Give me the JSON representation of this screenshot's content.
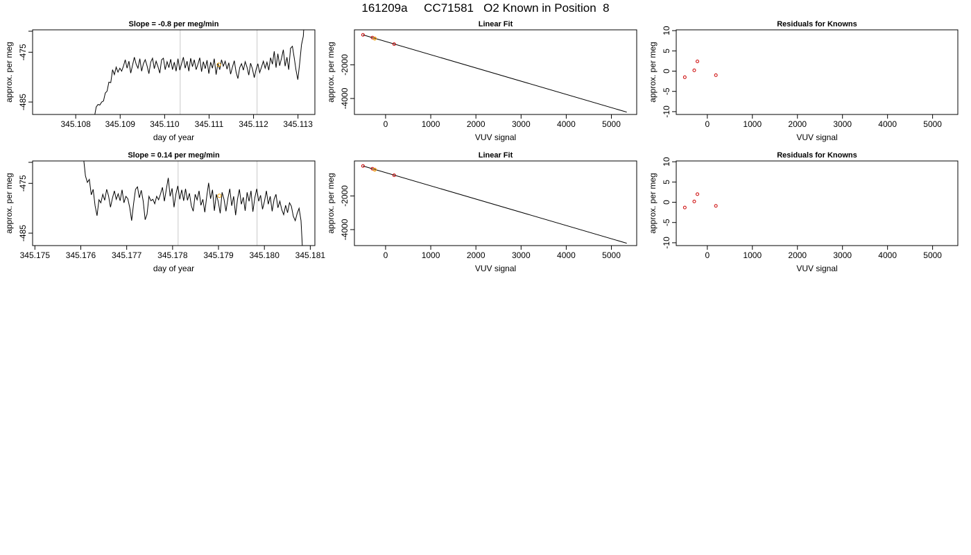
{
  "title": "161209a     CC71581   O2 Known in Position  8",
  "colors": {
    "axis": "#000000",
    "line": "#000000",
    "vline": "#c8c8c8",
    "point": "#cc0000",
    "highlight": "#f0a000"
  },
  "chart_data": [
    {
      "type": "line",
      "title": "Slope =  -0.8  per meg/min",
      "xlabel": "day of year",
      "ylabel": "approx. per meg",
      "xlim": [
        345.10703,
        345.11338
      ],
      "ylim": [
        -487.5,
        -470.5
      ],
      "xticks": [
        345.108,
        345.109,
        345.11,
        345.111,
        345.112,
        345.113
      ],
      "xtick_labels": [
        "345.108",
        "345.109",
        "345.110",
        "345.111",
        "345.112",
        "345.113"
      ],
      "yticks": [
        -485,
        -475
      ],
      "ytick_labels": [
        "-485",
        "-475"
      ],
      "vlines": [
        345.11035,
        345.11208
      ],
      "highlight_point": [
        345.11122,
        -477.5
      ],
      "series": [
        {
          "x_start": 345.10842,
          "x_end": 345.11316,
          "x_offclip": 345.1129,
          "values": [
            -488,
            -486,
            -485.5,
            -485.6,
            -485,
            -484.8,
            -483.2,
            -482.8,
            -481,
            -481.1,
            -478.5,
            -479.5,
            -478,
            -479,
            -478.2,
            -478.8,
            -477.8,
            -476.5,
            -478.2,
            -476.8,
            -479.2,
            -477.6,
            -476,
            -477.4,
            -478.2,
            -476.3,
            -478.8,
            -477.3,
            -476.5,
            -477.7,
            -479.3,
            -477,
            -476.2,
            -478.3,
            -476.8,
            -477.9,
            -479.2,
            -476.5,
            -476.2,
            -478.5,
            -476.9,
            -478.1,
            -476.4,
            -478.5,
            -477,
            -478.8,
            -476.3,
            -478.6,
            -477.3,
            -476,
            -478.2,
            -476.8,
            -478.8,
            -476.2,
            -477.9,
            -476.5,
            -478.5,
            -477.4,
            -476.1,
            -478.9,
            -476.9,
            -478.3,
            -476.6,
            -479.3,
            -477,
            -478.2,
            -476.3,
            -479.5,
            -477.2,
            -478.5,
            -476.5,
            -477.8,
            -476.8,
            -478.4,
            -477.1,
            -479.4,
            -478,
            -476.7,
            -479,
            -480.3,
            -478.1,
            -477.3,
            -478.6,
            -476.9,
            -478,
            -479.6,
            -477.2,
            -478.3,
            -480.1,
            -478.5,
            -477.3,
            -479.1,
            -478,
            -476.8,
            -478.2,
            -477,
            -478.6,
            -476.1,
            -477.4,
            -474.8,
            -478.1,
            -475.3,
            -477.7,
            -476.2,
            -474.5,
            -477.8,
            -476,
            -478.5,
            -474.2,
            -473.8,
            -476.1,
            -478.6,
            -480.5,
            -477.3,
            -473.5,
            -471.8,
            -466
          ]
        }
      ]
    },
    {
      "type": "scatter",
      "title": "Linear Fit",
      "xlabel": "VUV signal",
      "ylabel": "approx. per meg",
      "xlim": [
        -690,
        5560
      ],
      "ylim": [
        -4950,
        80
      ],
      "xticks": [
        0,
        1000,
        2000,
        3000,
        4000,
        5000
      ],
      "xtick_labels": [
        "0",
        "1000",
        "2000",
        "3000",
        "4000",
        "5000"
      ],
      "yticks": [
        -4000,
        -2000
      ],
      "ytick_labels": [
        "-4000",
        "-2000"
      ],
      "fit_line": {
        "x": [
          -500,
          5340
        ],
        "y": [
          -220,
          -4810
        ]
      },
      "points": [
        {
          "x": -500,
          "y": -220
        },
        {
          "x": -290,
          "y": -385
        },
        {
          "x": -240,
          "y": -430
        },
        {
          "x": 190,
          "y": -770
        }
      ],
      "highlight_point": {
        "x": -240,
        "y": -440
      }
    },
    {
      "type": "scatter",
      "title": "Residuals for Knowns",
      "xlabel": "VUV signal",
      "ylabel": "approx. per meg",
      "xlim": [
        -690,
        5560
      ],
      "ylim": [
        -10.7,
        10.2
      ],
      "xticks": [
        0,
        1000,
        2000,
        3000,
        4000,
        5000
      ],
      "xtick_labels": [
        "0",
        "1000",
        "2000",
        "3000",
        "4000",
        "5000"
      ],
      "yticks": [
        -10,
        -5,
        0,
        5,
        10
      ],
      "ytick_labels": [
        "-10",
        "-5",
        "0",
        "5",
        "10"
      ],
      "points": [
        {
          "x": -500,
          "y": -1.5
        },
        {
          "x": -290,
          "y": 0.2
        },
        {
          "x": -220,
          "y": 2.4
        },
        {
          "x": 190,
          "y": -1.0
        }
      ]
    },
    {
      "type": "line",
      "title": "Slope =  0.14  per meg/min",
      "xlabel": "day of year",
      "ylabel": "approx. per meg",
      "xlim": [
        345.17495,
        345.1811
      ],
      "ylim": [
        -487.5,
        -470.5
      ],
      "xticks": [
        345.175,
        345.176,
        345.177,
        345.178,
        345.179,
        345.18,
        345.181
      ],
      "xtick_labels": [
        "345.175",
        "345.176",
        "345.177",
        "345.178",
        "345.179",
        "345.180",
        "345.181"
      ],
      "yticks": [
        -485,
        -475
      ],
      "ytick_labels": [
        "-485",
        "-475"
      ],
      "vlines": [
        345.17812,
        345.17984
      ],
      "highlight_point": [
        345.17902,
        -477.5
      ],
      "series": [
        {
          "x_start": 345.17606,
          "x_end": 345.18084,
          "x_offclip": 345.181,
          "values": [
            -470,
            -473.5,
            -474.8,
            -474.2,
            -477.3,
            -476.2,
            -479.5,
            -481.5,
            -478.3,
            -478.9,
            -477.2,
            -478.4,
            -476.2,
            -477.5,
            -479.8,
            -478,
            -476.5,
            -478.2,
            -477.1,
            -478.5,
            -476.3,
            -478.9,
            -477.6,
            -478.1,
            -479.9,
            -482.5,
            -479.1,
            -476.2,
            -475.7,
            -477.9,
            -476.4,
            -478.6,
            -482.3,
            -481.2,
            -477.6,
            -478.5,
            -478.2,
            -479.1,
            -477.6,
            -478.3,
            -477.1,
            -475.8,
            -478.6,
            -476.2,
            -473.9,
            -477.6,
            -476,
            -479.8,
            -477.1,
            -475.5,
            -478.2,
            -476.3,
            -478.5,
            -476.1,
            -478.4,
            -477,
            -479.5,
            -480.6,
            -477.2,
            -478.3,
            -476.5,
            -479.4,
            -478.2,
            -480.8,
            -477.6,
            -474.9,
            -478.1,
            -476.3,
            -480.5,
            -477.2,
            -478.7,
            -481,
            -476.8,
            -478.2,
            -480.6,
            -478,
            -476.1,
            -479.5,
            -477.6,
            -481.4,
            -478.2,
            -476.2,
            -479.2,
            -477.8,
            -480.5,
            -476.8,
            -478.6,
            -476.5,
            -480.7,
            -477.9,
            -476.1,
            -478.6,
            -477.4,
            -480.2,
            -478.6,
            -476.5,
            -479.2,
            -477.6,
            -480.6,
            -478.2,
            -477.2,
            -479.9,
            -478.6,
            -480.3,
            -481.3,
            -479.4,
            -480.9,
            -478.9,
            -479.6,
            -481.6,
            -482.5,
            -481,
            -480,
            -482.5,
            -490
          ]
        }
      ]
    },
    {
      "type": "scatter",
      "title": "Linear Fit",
      "xlabel": "VUV signal",
      "ylabel": "approx. per meg",
      "xlim": [
        -690,
        5560
      ],
      "ylim": [
        -4950,
        80
      ],
      "xticks": [
        0,
        1000,
        2000,
        3000,
        4000,
        5000
      ],
      "xtick_labels": [
        "0",
        "1000",
        "2000",
        "3000",
        "4000",
        "5000"
      ],
      "yticks": [
        -4000,
        -2000
      ],
      "ytick_labels": [
        "-4000",
        "-2000"
      ],
      "fit_line": {
        "x": [
          -500,
          5340
        ],
        "y": [
          -220,
          -4810
        ]
      },
      "points": [
        {
          "x": -500,
          "y": -220
        },
        {
          "x": -290,
          "y": -385
        },
        {
          "x": -240,
          "y": -430
        },
        {
          "x": 190,
          "y": -770
        }
      ],
      "highlight_point": {
        "x": -240,
        "y": -440
      }
    },
    {
      "type": "scatter",
      "title": "Residuals for Knowns",
      "xlabel": "VUV signal",
      "ylabel": "approx. per meg",
      "xlim": [
        -690,
        5560
      ],
      "ylim": [
        -10.7,
        10.2
      ],
      "xticks": [
        0,
        1000,
        2000,
        3000,
        4000,
        5000
      ],
      "xtick_labels": [
        "0",
        "1000",
        "2000",
        "3000",
        "4000",
        "5000"
      ],
      "yticks": [
        -10,
        -5,
        0,
        5,
        10
      ],
      "ytick_labels": [
        "-10",
        "-5",
        "0",
        "5",
        "10"
      ],
      "points": [
        {
          "x": -500,
          "y": -1.3
        },
        {
          "x": -290,
          "y": 0.2
        },
        {
          "x": -220,
          "y": 2.0
        },
        {
          "x": 190,
          "y": -0.9
        }
      ]
    }
  ]
}
